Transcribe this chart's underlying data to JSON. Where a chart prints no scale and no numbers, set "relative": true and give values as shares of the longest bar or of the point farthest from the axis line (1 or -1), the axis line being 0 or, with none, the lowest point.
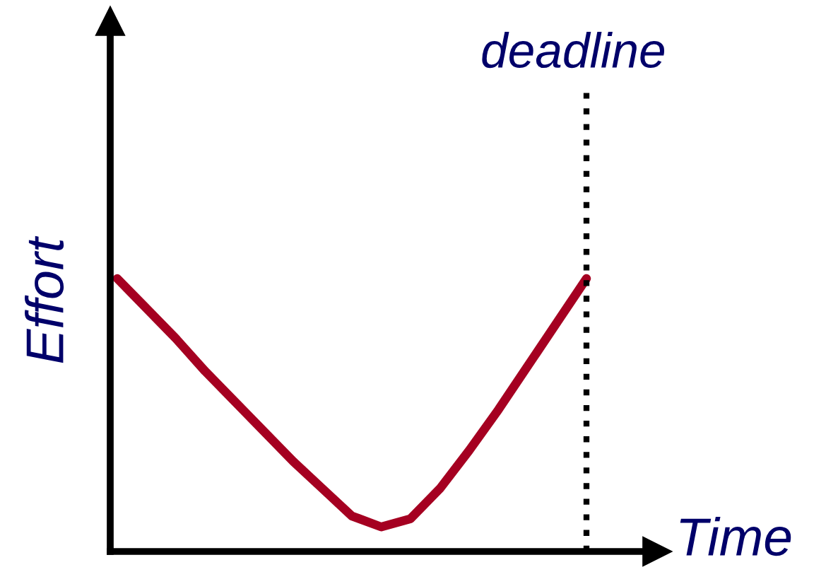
{
  "chart_data": {
    "type": "line",
    "relative": true,
    "xlabel": "Time",
    "ylabel": "Effort",
    "categories": [
      null,
      null,
      null,
      null,
      null,
      null,
      null,
      null,
      null,
      null,
      null,
      null,
      null,
      null,
      null,
      null,
      null
    ],
    "series": [
      {
        "color": "#a50021",
        "values": [
          1.0,
          0.89,
          0.78,
          0.66,
          0.55,
          0.44,
          0.33,
          0.23,
          0.13,
          0.09,
          0.12,
          0.23,
          0.37,
          0.52,
          0.68,
          0.84,
          1.0
        ]
      }
    ],
    "annotations": [
      "deadline"
    ],
    "legend": false,
    "marker": "none",
    "line_style": "solid"
  }
}
